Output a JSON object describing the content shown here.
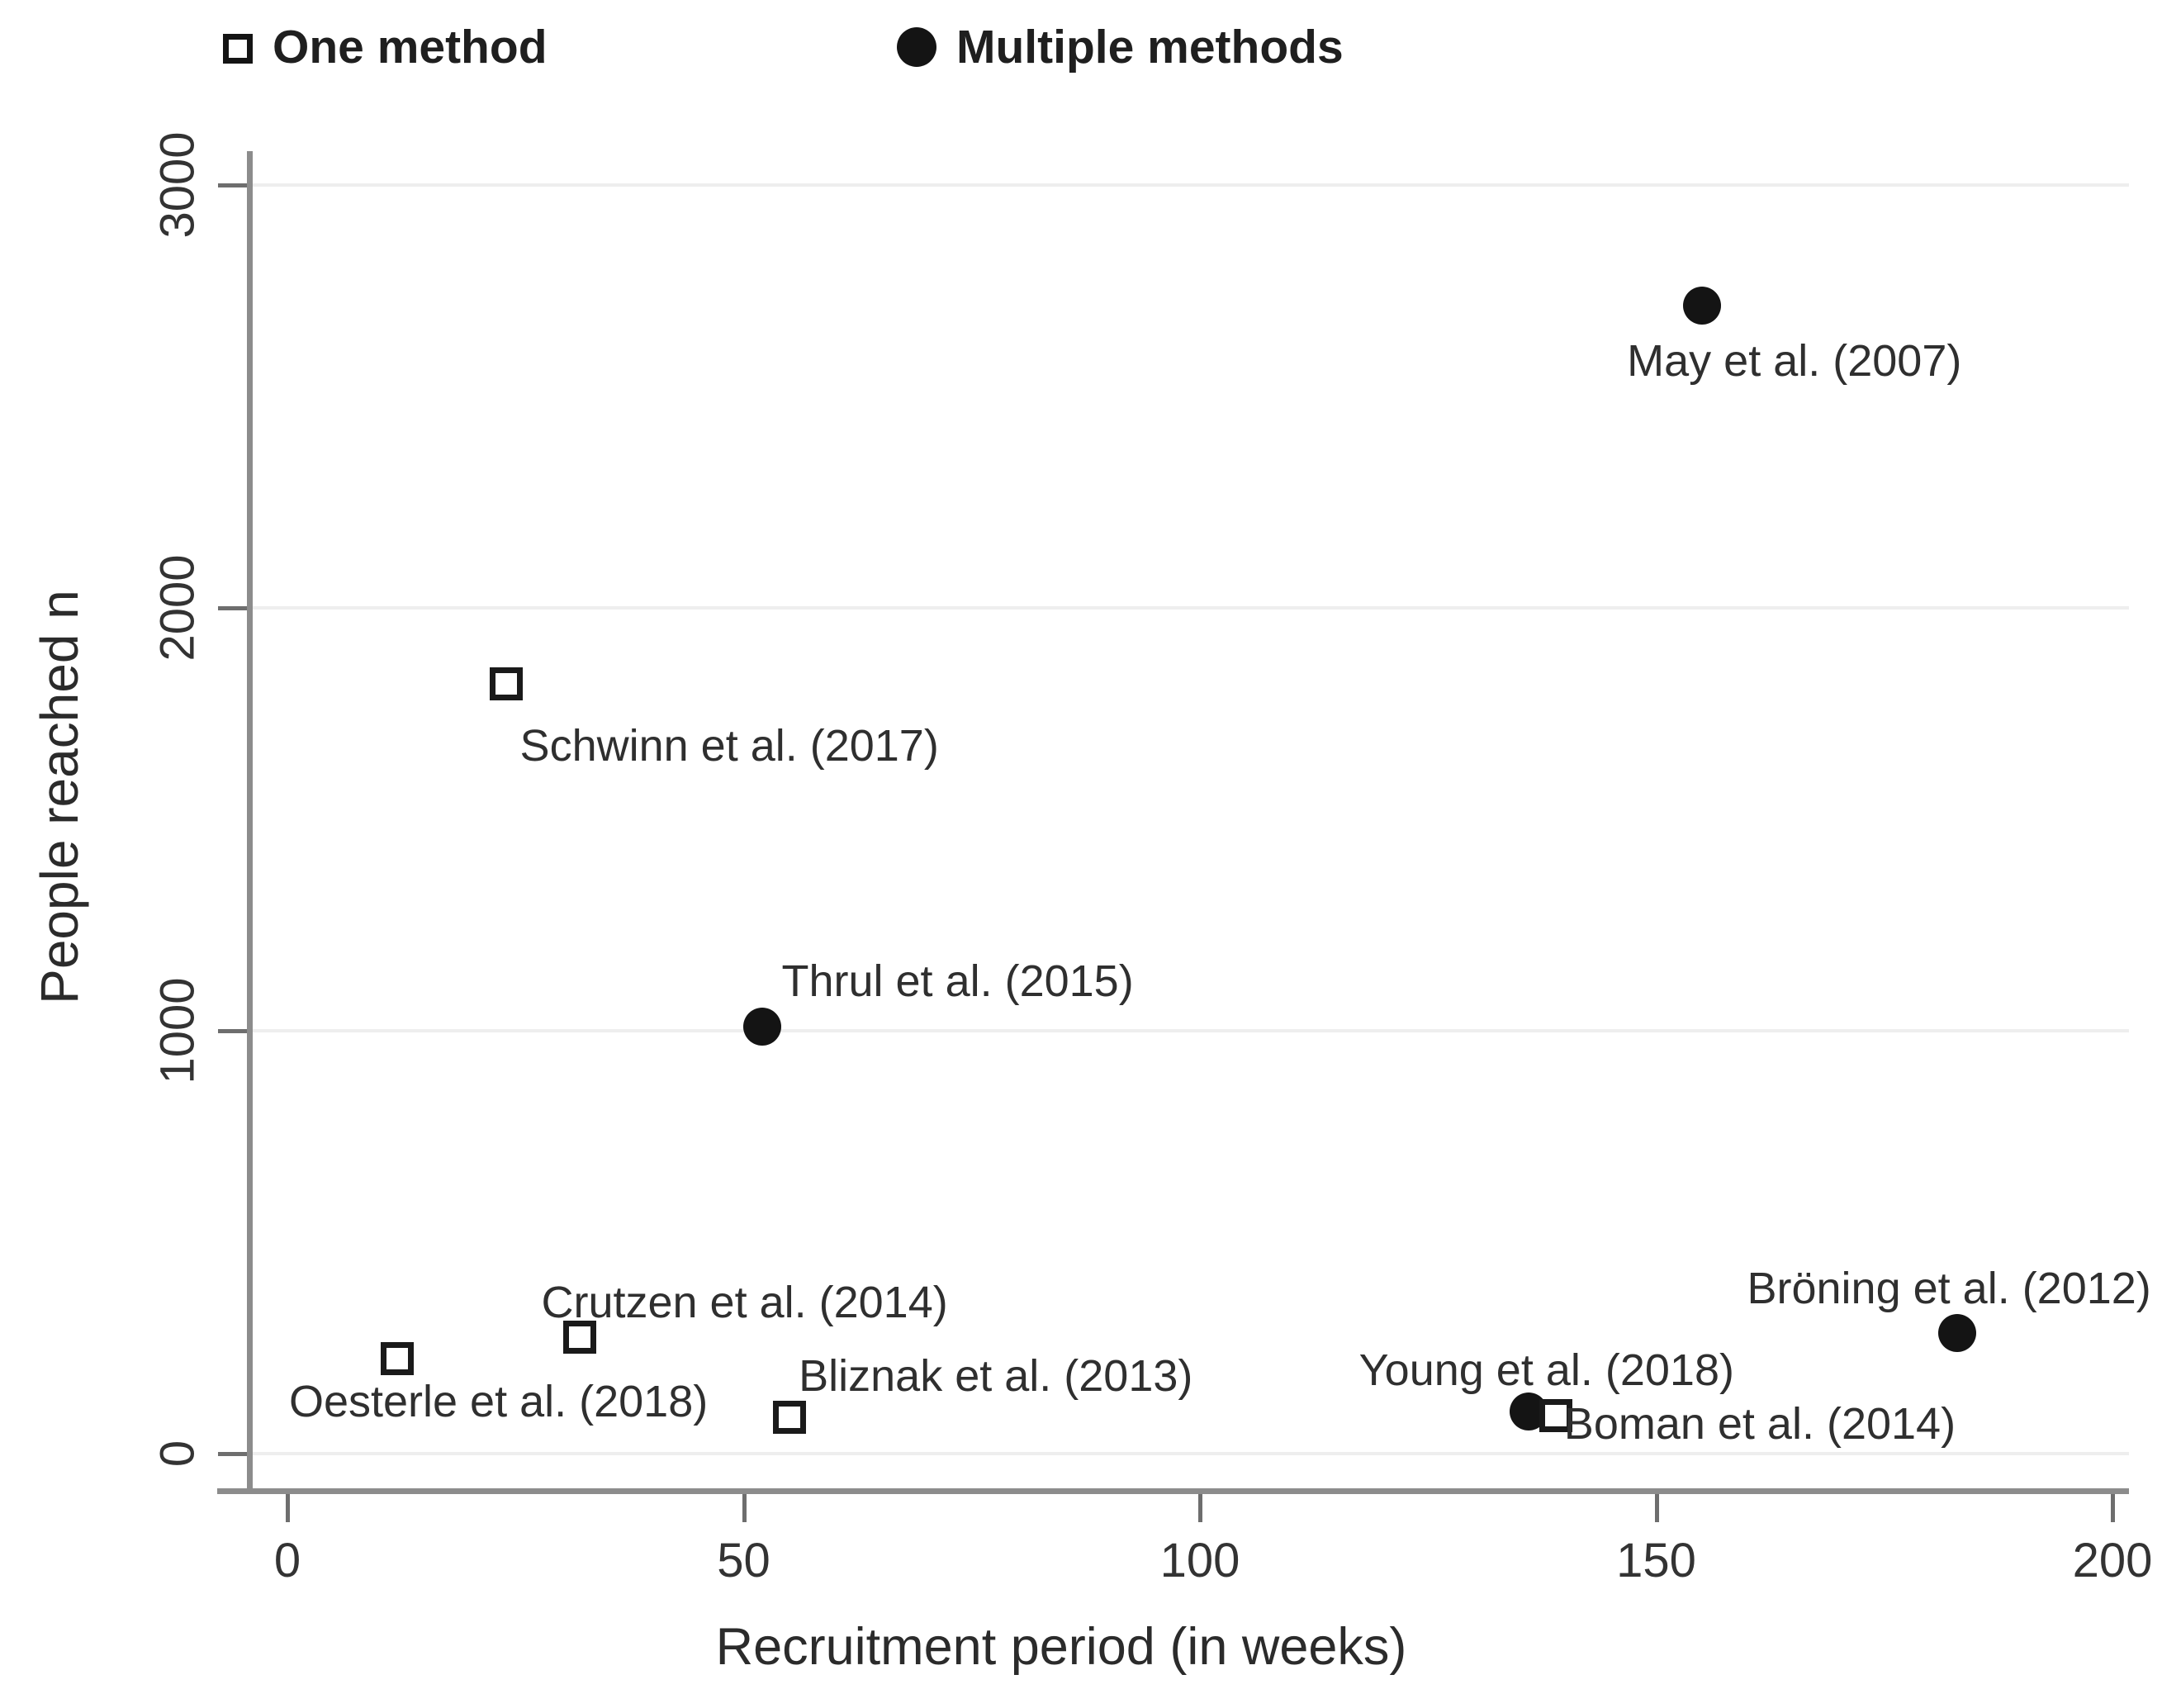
{
  "figure": {
    "background": "#ffffff"
  },
  "legend": {
    "position": "top-left",
    "items": [
      {
        "label": "One method",
        "marker": "open-square"
      },
      {
        "label": "Multiple methods",
        "marker": "filled-circle"
      }
    ]
  },
  "chart_data": {
    "type": "scatter",
    "title": "",
    "xlabel": "Recruitment period (in weeks)",
    "ylabel": "People reached n",
    "xlim": [
      0,
      202
    ],
    "ylim": [
      0,
      3160
    ],
    "x_ticks": [
      0,
      50,
      100,
      150,
      200
    ],
    "y_ticks": [
      0,
      1000,
      2000,
      3000
    ],
    "grid": {
      "horizontal": true,
      "vertical": false,
      "color": "#eeeeee"
    },
    "legend_position": "top-left-above-plot",
    "series": [
      {
        "name": "Multiple methods",
        "marker": "filled-circle",
        "points": [
          {
            "label": "May et al. (2007)",
            "x": 155,
            "y": 2715,
            "label_dx": 112,
            "label_dy": 67
          },
          {
            "label": "Thrul et al. (2015)",
            "x": 52,
            "y": 1010,
            "label_dx": 237,
            "label_dy": -55
          },
          {
            "label": "Young et al. (2018)",
            "x": 136,
            "y": 100,
            "label_dx": 22,
            "label_dy": -50
          },
          {
            "label": "Bröning et al. (2012)",
            "x": 183,
            "y": 285,
            "label_dx": -10,
            "label_dy": -54
          }
        ]
      },
      {
        "name": "One method",
        "marker": "open-square",
        "points": [
          {
            "label": "Oesterle et al. (2018)",
            "x": 12,
            "y": 225,
            "label_dx": 123,
            "label_dy": 52
          },
          {
            "label": "Schwinn et al. (2017)",
            "x": 24,
            "y": 1820,
            "label_dx": 270,
            "label_dy": 75
          },
          {
            "label": "Crutzen et al. (2014)",
            "x": 32,
            "y": 275,
            "label_dx": 200,
            "label_dy": -42
          },
          {
            "label": "Bliznak et al. (2013)",
            "x": 55,
            "y": 85,
            "label_dx": 250,
            "label_dy": -50
          },
          {
            "label": "Boman et al. (2014)",
            "x": 139,
            "y": 90,
            "label_dx": 247,
            "label_dy": 10
          }
        ]
      }
    ]
  },
  "colors": {
    "marker": "#141414",
    "axis_line": "#8c8c8c",
    "tick": "#6e6e6e",
    "grid": "#eeeeee",
    "text": "#2f2f2f",
    "background": "#ffffff"
  }
}
